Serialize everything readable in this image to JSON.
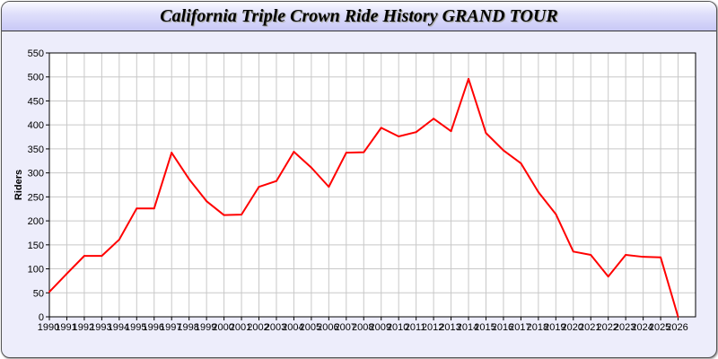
{
  "chart_data": {
    "type": "line",
    "title": "California Triple Crown Ride History GRAND TOUR",
    "xlabel": "",
    "ylabel": "Riders",
    "x": [
      1990,
      1991,
      1992,
      1993,
      1994,
      1995,
      1996,
      1997,
      1998,
      1999,
      2000,
      2001,
      2002,
      2003,
      2004,
      2005,
      2006,
      2007,
      2008,
      2009,
      2010,
      2011,
      2012,
      2013,
      2014,
      2015,
      2016,
      2017,
      2018,
      2019,
      2020,
      2021,
      2022,
      2023,
      2024,
      2025,
      2026
    ],
    "series": [
      {
        "values": [
          52,
          90,
          127,
          127,
          161,
          226,
          226,
          342,
          287,
          241,
          212,
          213,
          271,
          283,
          344,
          311,
          271,
          342,
          343,
          394,
          376,
          385,
          413,
          387,
          496,
          383,
          347,
          320,
          260,
          214,
          136,
          129,
          84,
          129,
          125,
          124,
          0
        ],
        "color": "#ff0000"
      }
    ],
    "xlim": [
      1990,
      2027
    ],
    "ylim": [
      0,
      550
    ],
    "yticks": [
      0,
      50,
      100,
      150,
      200,
      250,
      300,
      350,
      400,
      450,
      500,
      550
    ],
    "xticks": [
      "1990",
      "1991",
      "1992",
      "1993",
      "1994",
      "1995",
      "1996",
      "1997",
      "1998",
      "1999",
      "2000",
      "2001",
      "2002",
      "2003",
      "2004",
      "2005",
      "2006",
      "2007",
      "2008",
      "2009",
      "2010",
      "2011",
      "2012",
      "2013",
      "2014",
      "2015",
      "2016",
      "2017",
      "2018",
      "2019",
      "2020",
      "2021",
      "2022",
      "2023",
      "2024",
      "2025",
      "2026"
    ],
    "grid": true,
    "legend": "none"
  }
}
